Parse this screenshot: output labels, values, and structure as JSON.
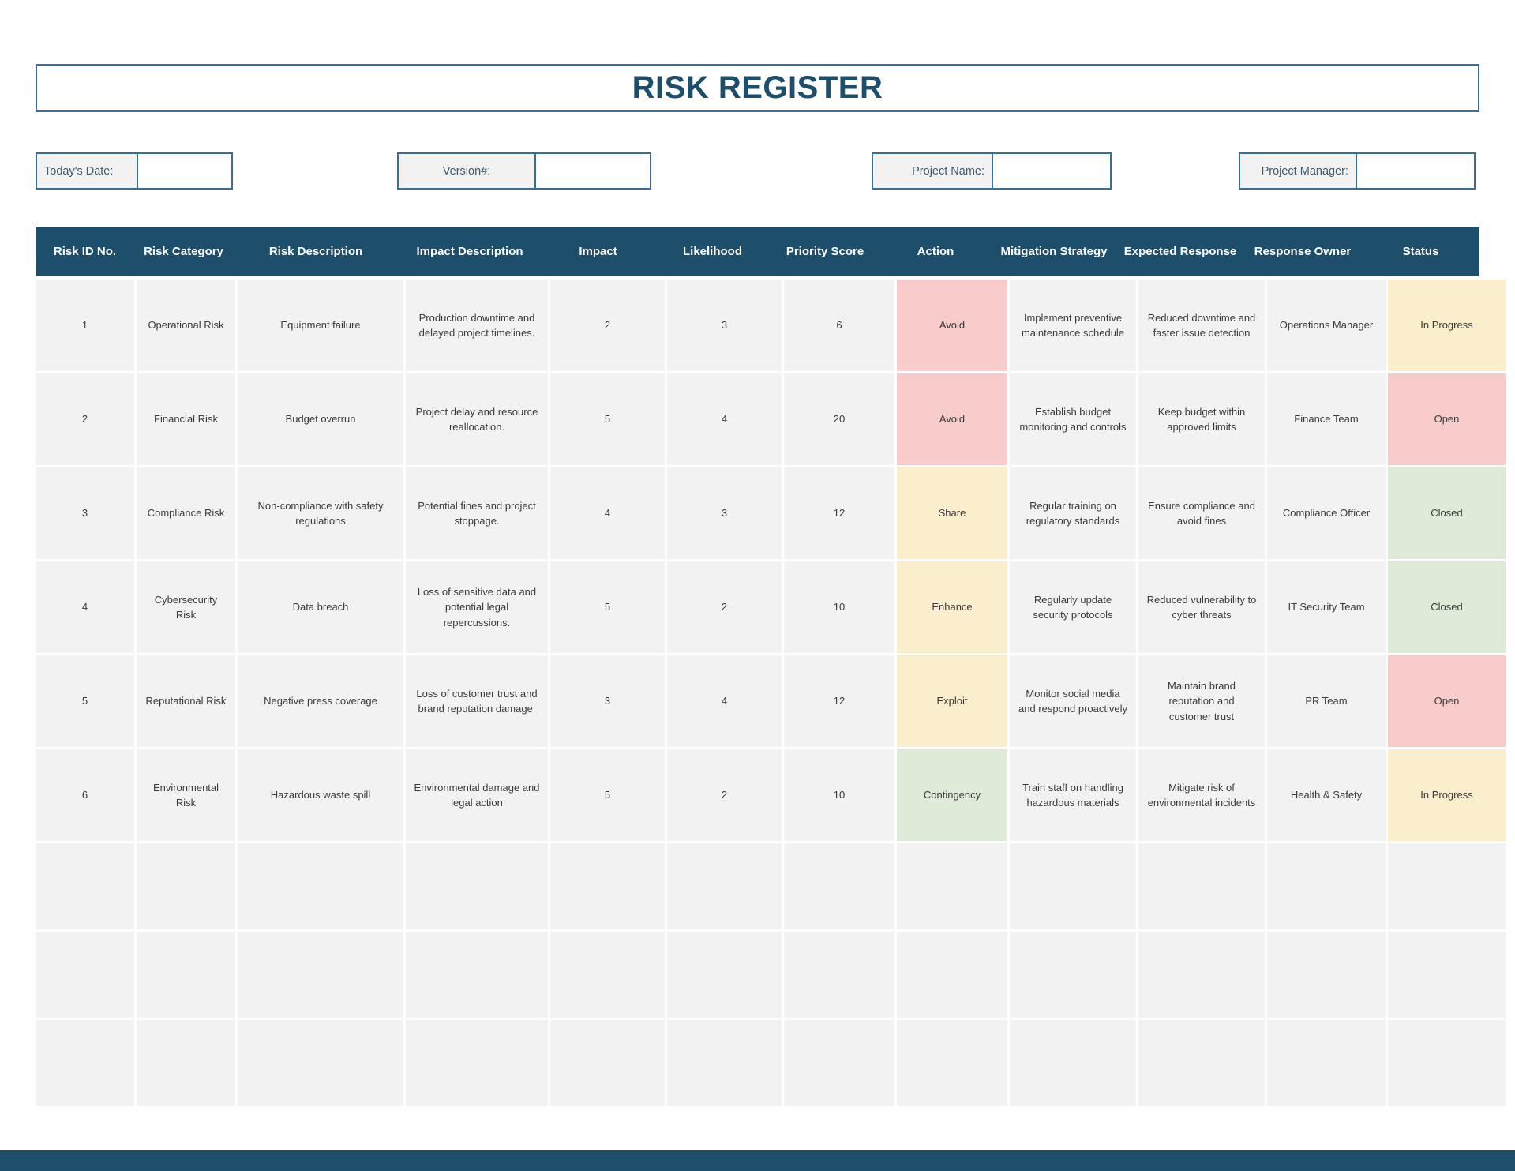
{
  "title": "RISK REGISTER",
  "fields": [
    {
      "label": "Today's Date:",
      "value": ""
    },
    {
      "label": "Version#:",
      "value": ""
    },
    {
      "label": "Project Name:",
      "value": ""
    },
    {
      "label": "Project Manager:",
      "value": ""
    }
  ],
  "colors": {
    "navy": "#1d4e6b",
    "cell_bg": "#f2f2f2",
    "border_blue": "#3a6e92",
    "pink": "#f9cccc",
    "yellow": "#fbeecd",
    "green": "#dfebd9"
  },
  "table": {
    "columns": [
      "Risk ID No.",
      "Risk Category",
      "Risk Description",
      "Impact Description",
      "Impact",
      "Likelihood",
      "Priority Score",
      "Action",
      "Mitigation Strategy",
      "Expected Response",
      "Response Owner",
      "Status"
    ],
    "column_keys": [
      "id",
      "category",
      "description",
      "impact_description",
      "impact",
      "likelihood",
      "priority",
      "action",
      "mitigation",
      "expected",
      "owner",
      "status"
    ],
    "rows": [
      {
        "id": "1",
        "category": "Operational Risk",
        "description": "Equipment failure",
        "impact_description": "Production downtime and delayed project timelines.",
        "impact": "2",
        "likelihood": "3",
        "priority": "6",
        "action": "Avoid",
        "action_color": "pink",
        "mitigation": "Implement preventive maintenance schedule",
        "expected": "Reduced downtime and faster issue detection",
        "owner": "Operations Manager",
        "status": "In Progress",
        "status_color": "yellow"
      },
      {
        "id": "2",
        "category": "Financial Risk",
        "description": "Budget overrun",
        "impact_description": "Project delay and resource reallocation.",
        "impact": "5",
        "likelihood": "4",
        "priority": "20",
        "action": "Avoid",
        "action_color": "pink",
        "mitigation": "Establish budget monitoring and controls",
        "expected": "Keep budget within approved limits",
        "owner": "Finance Team",
        "status": "Open",
        "status_color": "pink"
      },
      {
        "id": "3",
        "category": "Compliance Risk",
        "description": "Non-compliance with safety regulations",
        "impact_description": "Potential fines and project stoppage.",
        "impact": "4",
        "likelihood": "3",
        "priority": "12",
        "action": "Share",
        "action_color": "yellow",
        "mitigation": "Regular training on regulatory standards",
        "expected": "Ensure compliance and avoid fines",
        "owner": "Compliance Officer",
        "status": "Closed",
        "status_color": "green"
      },
      {
        "id": "4",
        "category": "Cybersecurity Risk",
        "description": "Data breach",
        "impact_description": "Loss of sensitive data and potential legal repercussions.",
        "impact": "5",
        "likelihood": "2",
        "priority": "10",
        "action": "Enhance",
        "action_color": "yellow",
        "mitigation": "Regularly update security protocols",
        "expected": "Reduced vulnerability to cyber threats",
        "owner": "IT Security Team",
        "status": "Closed",
        "status_color": "green"
      },
      {
        "id": "5",
        "category": "Reputational Risk",
        "description": "Negative press coverage",
        "impact_description": "Loss of customer trust and brand reputation damage.",
        "impact": "3",
        "likelihood": "4",
        "priority": "12",
        "action": "Exploit",
        "action_color": "yellow",
        "mitigation": "Monitor social media and respond proactively",
        "expected": "Maintain brand reputation and customer trust",
        "owner": "PR Team",
        "status": "Open",
        "status_color": "pink"
      },
      {
        "id": "6",
        "category": "Environmental Risk",
        "description": "Hazardous waste spill",
        "impact_description": "Environmental damage and legal action",
        "impact": "5",
        "likelihood": "2",
        "priority": "10",
        "action": "Contingency",
        "action_color": "green",
        "mitigation": "Train staff on handling hazardous materials",
        "expected": "Mitigate risk of environmental incidents",
        "owner": "Health & Safety",
        "status": "In Progress",
        "status_color": "yellow"
      }
    ],
    "empty_row_count": 3
  }
}
